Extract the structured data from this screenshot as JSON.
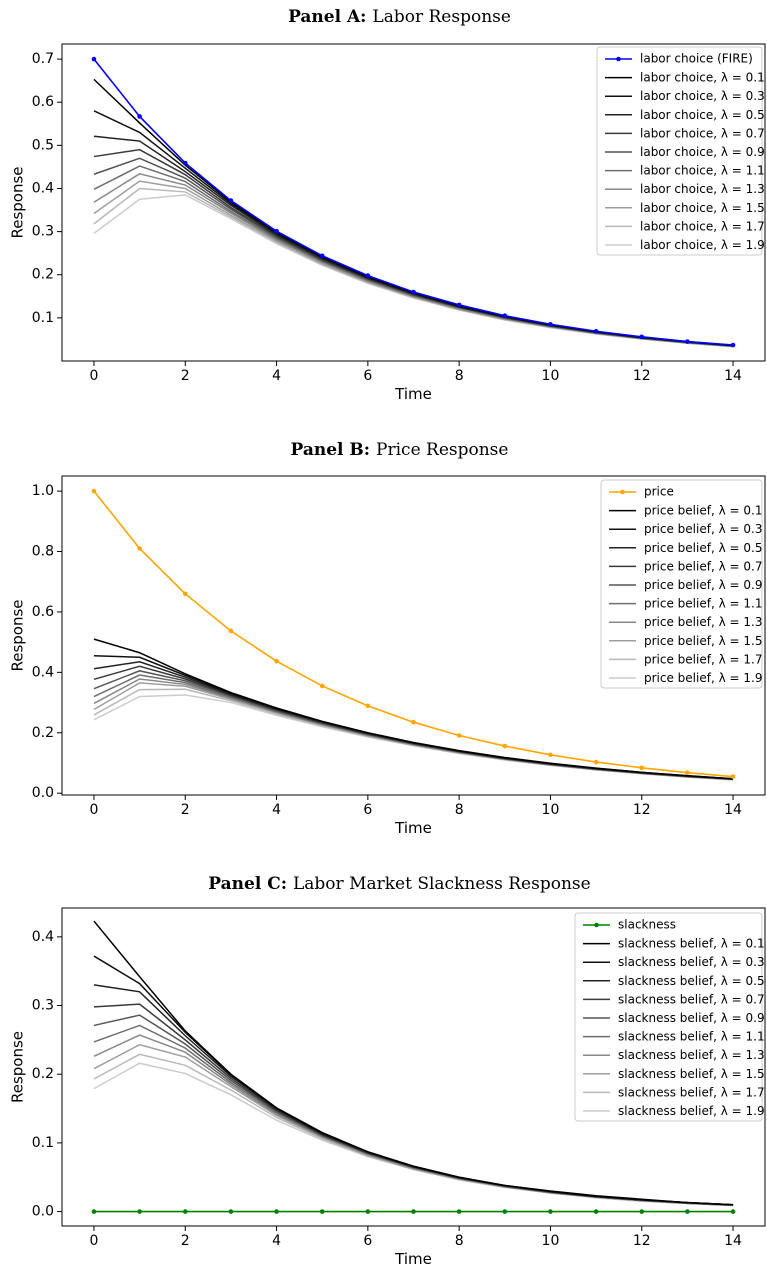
{
  "chart_data": [
    {
      "type": "line",
      "title_bold": "Panel A:",
      "title_rest": "Labor Response",
      "xlabel": "Time",
      "ylabel": "Response",
      "x": [
        0,
        1,
        2,
        3,
        4,
        5,
        6,
        7,
        8,
        9,
        10,
        11,
        12,
        13,
        14
      ],
      "xlim": [
        -0.7,
        14.7
      ],
      "ylim": [
        0.0,
        0.735
      ],
      "xticks": [
        "0",
        "2",
        "4",
        "6",
        "8",
        "10",
        "12",
        "14"
      ],
      "xtick_values": [
        0,
        2,
        4,
        6,
        8,
        10,
        12,
        14
      ],
      "yticks": [
        "0.1",
        "0.2",
        "0.3",
        "0.4",
        "0.5",
        "0.6",
        "0.7"
      ],
      "ytick_values": [
        0.1,
        0.2,
        0.3,
        0.4,
        0.5,
        0.6,
        0.7
      ],
      "legend_placement": "upper-right",
      "grid": false,
      "main_series": {
        "name": "labor choice (FIRE)",
        "color": "#0000ff",
        "values": [
          0.7,
          0.567,
          0.459,
          0.372,
          0.301,
          0.244,
          0.198,
          0.16,
          0.13,
          0.105,
          0.085,
          0.069,
          0.056,
          0.045,
          0.037
        ]
      },
      "belief_prefix": "labor choice, ",
      "belief_series": [
        {
          "label": "λ = 0.1",
          "color": "#000000",
          "values": [
            0.653,
            0.552,
            0.454,
            0.369,
            0.299,
            0.242,
            0.196,
            0.159,
            0.129,
            0.104,
            0.084,
            0.068,
            0.055,
            0.045,
            0.036
          ]
        },
        {
          "label": "λ = 0.3",
          "color": "#111111",
          "values": [
            0.58,
            0.53,
            0.447,
            0.365,
            0.296,
            0.24,
            0.194,
            0.157,
            0.127,
            0.103,
            0.083,
            0.068,
            0.055,
            0.044,
            0.036
          ]
        },
        {
          "label": "λ = 0.5",
          "color": "#222222",
          "values": [
            0.521,
            0.51,
            0.439,
            0.361,
            0.293,
            0.238,
            0.192,
            0.156,
            0.126,
            0.102,
            0.083,
            0.067,
            0.054,
            0.044,
            0.036
          ]
        },
        {
          "label": "λ = 0.7",
          "color": "#3a3a3a",
          "values": [
            0.474,
            0.49,
            0.432,
            0.356,
            0.29,
            0.235,
            0.191,
            0.154,
            0.125,
            0.101,
            0.082,
            0.066,
            0.054,
            0.044,
            0.035
          ]
        },
        {
          "label": "λ = 0.9",
          "color": "#555555",
          "values": [
            0.433,
            0.47,
            0.424,
            0.352,
            0.287,
            0.233,
            0.189,
            0.153,
            0.124,
            0.1,
            0.081,
            0.066,
            0.053,
            0.043,
            0.035
          ]
        },
        {
          "label": "λ = 1.1",
          "color": "#6e6e6e",
          "values": [
            0.398,
            0.452,
            0.416,
            0.347,
            0.284,
            0.231,
            0.187,
            0.151,
            0.123,
            0.099,
            0.08,
            0.065,
            0.053,
            0.043,
            0.035
          ]
        },
        {
          "label": "λ = 1.3",
          "color": "#888888",
          "values": [
            0.368,
            0.434,
            0.408,
            0.343,
            0.281,
            0.229,
            0.185,
            0.15,
            0.121,
            0.098,
            0.08,
            0.064,
            0.052,
            0.042,
            0.034
          ]
        },
        {
          "label": "λ = 1.5",
          "color": "#9e9e9e",
          "values": [
            0.342,
            0.417,
            0.4,
            0.338,
            0.278,
            0.226,
            0.183,
            0.149,
            0.12,
            0.097,
            0.079,
            0.064,
            0.052,
            0.042,
            0.034
          ]
        },
        {
          "label": "λ = 1.7",
          "color": "#b8b8b8",
          "values": [
            0.318,
            0.4,
            0.392,
            0.334,
            0.275,
            0.224,
            0.182,
            0.147,
            0.119,
            0.096,
            0.078,
            0.063,
            0.051,
            0.042,
            0.034
          ]
        },
        {
          "label": "λ = 1.9",
          "color": "#cccccc",
          "values": [
            0.296,
            0.375,
            0.385,
            0.33,
            0.272,
            0.222,
            0.18,
            0.146,
            0.118,
            0.095,
            0.077,
            0.063,
            0.051,
            0.041,
            0.033
          ]
        }
      ]
    },
    {
      "type": "line",
      "title_bold": "Panel B:",
      "title_rest": "Price Response",
      "xlabel": "Time",
      "ylabel": "Response",
      "x": [
        0,
        1,
        2,
        3,
        4,
        5,
        6,
        7,
        8,
        9,
        10,
        11,
        12,
        13,
        14
      ],
      "xlim": [
        -0.7,
        14.7
      ],
      "ylim": [
        -0.006,
        1.05
      ],
      "xticks": [
        "0",
        "2",
        "4",
        "6",
        "8",
        "10",
        "12",
        "14"
      ],
      "xtick_values": [
        0,
        2,
        4,
        6,
        8,
        10,
        12,
        14
      ],
      "yticks": [
        "0.0",
        "0.2",
        "0.4",
        "0.6",
        "0.8",
        "1.0"
      ],
      "ytick_values": [
        0.0,
        0.2,
        0.4,
        0.6,
        0.8,
        1.0
      ],
      "legend_placement": "upper-right",
      "grid": false,
      "main_series": {
        "name": "price",
        "color": "#ffa500",
        "values": [
          1.0,
          0.81,
          0.66,
          0.537,
          0.437,
          0.355,
          0.289,
          0.235,
          0.191,
          0.156,
          0.127,
          0.103,
          0.084,
          0.068,
          0.055
        ]
      },
      "belief_prefix": "price belief, ",
      "belief_series": [
        {
          "label": "λ = 0.1",
          "color": "#000000",
          "values": [
            0.51,
            0.465,
            0.395,
            0.333,
            0.282,
            0.238,
            0.2,
            0.168,
            0.141,
            0.118,
            0.099,
            0.083,
            0.069,
            0.058,
            0.048
          ]
        },
        {
          "label": "λ = 0.3",
          "color": "#111111",
          "values": [
            0.455,
            0.45,
            0.39,
            0.33,
            0.28,
            0.237,
            0.199,
            0.167,
            0.14,
            0.117,
            0.098,
            0.082,
            0.069,
            0.057,
            0.048
          ]
        },
        {
          "label": "λ = 0.5",
          "color": "#222222",
          "values": [
            0.412,
            0.435,
            0.384,
            0.327,
            0.278,
            0.235,
            0.198,
            0.166,
            0.139,
            0.116,
            0.097,
            0.081,
            0.068,
            0.057,
            0.047
          ]
        },
        {
          "label": "λ = 0.7",
          "color": "#3a3a3a",
          "values": [
            0.377,
            0.42,
            0.378,
            0.324,
            0.275,
            0.233,
            0.196,
            0.164,
            0.138,
            0.115,
            0.096,
            0.081,
            0.067,
            0.056,
            0.047
          ]
        },
        {
          "label": "λ = 0.9",
          "color": "#555555",
          "values": [
            0.346,
            0.405,
            0.372,
            0.321,
            0.273,
            0.231,
            0.195,
            0.163,
            0.137,
            0.114,
            0.096,
            0.08,
            0.067,
            0.056,
            0.046
          ]
        },
        {
          "label": "λ = 1.1",
          "color": "#6e6e6e",
          "values": [
            0.32,
            0.391,
            0.366,
            0.317,
            0.27,
            0.229,
            0.193,
            0.162,
            0.136,
            0.113,
            0.095,
            0.079,
            0.066,
            0.055,
            0.046
          ]
        },
        {
          "label": "λ = 1.3",
          "color": "#888888",
          "values": [
            0.297,
            0.378,
            0.36,
            0.314,
            0.268,
            0.227,
            0.192,
            0.161,
            0.135,
            0.113,
            0.094,
            0.079,
            0.066,
            0.055,
            0.046
          ]
        },
        {
          "label": "λ = 1.5",
          "color": "#9e9e9e",
          "values": [
            0.277,
            0.365,
            0.354,
            0.311,
            0.266,
            0.226,
            0.19,
            0.16,
            0.134,
            0.112,
            0.093,
            0.078,
            0.065,
            0.054,
            0.045
          ]
        },
        {
          "label": "λ = 1.7",
          "color": "#b8b8b8",
          "values": [
            0.259,
            0.343,
            0.344,
            0.306,
            0.262,
            0.223,
            0.188,
            0.158,
            0.133,
            0.111,
            0.093,
            0.077,
            0.065,
            0.054,
            0.045
          ]
        },
        {
          "label": "λ = 1.9",
          "color": "#cccccc",
          "values": [
            0.243,
            0.32,
            0.325,
            0.3,
            0.258,
            0.22,
            0.186,
            0.157,
            0.131,
            0.11,
            0.092,
            0.077,
            0.064,
            0.053,
            0.044
          ]
        }
      ]
    },
    {
      "type": "line",
      "title_bold": "Panel C:",
      "title_rest": "Labor Market Slackness Response",
      "xlabel": "Time",
      "ylabel": "Response",
      "x": [
        0,
        1,
        2,
        3,
        4,
        5,
        6,
        7,
        8,
        9,
        10,
        11,
        12,
        13,
        14
      ],
      "xlim": [
        -0.7,
        14.7
      ],
      "ylim": [
        -0.021,
        0.442
      ],
      "xticks": [
        "0",
        "2",
        "4",
        "6",
        "8",
        "10",
        "12",
        "14"
      ],
      "xtick_values": [
        0,
        2,
        4,
        6,
        8,
        10,
        12,
        14
      ],
      "yticks": [
        "0.0",
        "0.1",
        "0.2",
        "0.3",
        "0.4"
      ],
      "ytick_values": [
        0.0,
        0.1,
        0.2,
        0.3,
        0.4
      ],
      "legend_placement": "upper-right",
      "grid": false,
      "main_series": {
        "name": "slackness",
        "color": "#008000",
        "values": [
          0,
          0,
          0,
          0,
          0,
          0,
          0,
          0,
          0,
          0,
          0,
          0,
          0,
          0,
          0
        ]
      },
      "belief_prefix": "slackness belief, ",
      "belief_series": [
        {
          "label": "λ = 0.1",
          "color": "#000000",
          "values": [
            0.423,
            0.342,
            0.263,
            0.2,
            0.151,
            0.115,
            0.087,
            0.066,
            0.05,
            0.038,
            0.03,
            0.023,
            0.018,
            0.013,
            0.01
          ]
        },
        {
          "label": "λ = 0.3",
          "color": "#111111",
          "values": [
            0.372,
            0.332,
            0.261,
            0.199,
            0.15,
            0.114,
            0.087,
            0.066,
            0.05,
            0.038,
            0.029,
            0.022,
            0.017,
            0.013,
            0.01
          ]
        },
        {
          "label": "λ = 0.5",
          "color": "#222222",
          "values": [
            0.33,
            0.32,
            0.256,
            0.197,
            0.149,
            0.113,
            0.086,
            0.065,
            0.049,
            0.038,
            0.029,
            0.022,
            0.017,
            0.013,
            0.01
          ]
        },
        {
          "label": "λ = 0.7",
          "color": "#3a3a3a",
          "values": [
            0.298,
            0.302,
            0.25,
            0.194,
            0.147,
            0.112,
            0.085,
            0.065,
            0.049,
            0.037,
            0.029,
            0.022,
            0.017,
            0.013,
            0.01
          ]
        },
        {
          "label": "λ = 0.9",
          "color": "#555555",
          "values": [
            0.271,
            0.286,
            0.244,
            0.191,
            0.146,
            0.111,
            0.085,
            0.064,
            0.049,
            0.037,
            0.028,
            0.022,
            0.017,
            0.013,
            0.01
          ]
        },
        {
          "label": "λ = 1.1",
          "color": "#6e6e6e",
          "values": [
            0.247,
            0.271,
            0.238,
            0.188,
            0.144,
            0.11,
            0.084,
            0.064,
            0.048,
            0.037,
            0.028,
            0.021,
            0.016,
            0.012,
            0.009
          ]
        },
        {
          "label": "λ = 1.3",
          "color": "#888888",
          "values": [
            0.226,
            0.257,
            0.232,
            0.185,
            0.142,
            0.109,
            0.083,
            0.063,
            0.048,
            0.036,
            0.028,
            0.021,
            0.016,
            0.012,
            0.009
          ]
        },
        {
          "label": "λ = 1.5",
          "color": "#9e9e9e",
          "values": [
            0.208,
            0.243,
            0.225,
            0.182,
            0.14,
            0.108,
            0.082,
            0.062,
            0.047,
            0.036,
            0.027,
            0.021,
            0.016,
            0.012,
            0.009
          ]
        },
        {
          "label": "λ = 1.7",
          "color": "#b8b8b8",
          "values": [
            0.193,
            0.229,
            0.213,
            0.177,
            0.137,
            0.106,
            0.081,
            0.062,
            0.047,
            0.036,
            0.027,
            0.021,
            0.016,
            0.012,
            0.009
          ]
        },
        {
          "label": "λ = 1.9",
          "color": "#cccccc",
          "values": [
            0.179,
            0.216,
            0.201,
            0.17,
            0.133,
            0.104,
            0.08,
            0.061,
            0.046,
            0.035,
            0.027,
            0.02,
            0.015,
            0.012,
            0.009
          ]
        }
      ]
    }
  ]
}
